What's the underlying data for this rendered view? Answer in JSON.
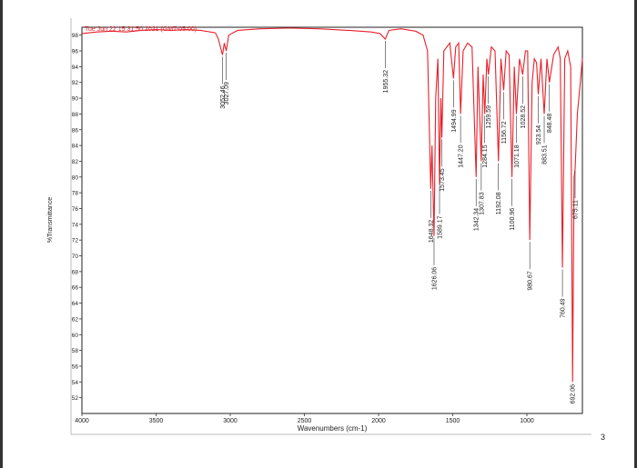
{
  "chart_data": {
    "type": "line",
    "header": "Tue Jun 22 15:31:50 2021 (GMT-05:00)",
    "xlabel": "Wavenumbers (cm-1)",
    "ylabel": "%Transmittance",
    "page_number": "3",
    "color": "#e8202a",
    "xlim": [
      4000,
      626
    ],
    "xticks": [
      4000,
      3500,
      3000,
      2500,
      2000,
      1500,
      1000
    ],
    "ylim": [
      50,
      99
    ],
    "yticks": [
      52,
      54,
      56,
      58,
      60,
      62,
      64,
      66,
      68,
      70,
      72,
      74,
      76,
      78,
      80,
      82,
      84,
      86,
      88,
      90,
      92,
      94,
      96,
      98
    ],
    "x": [
      4000,
      3900,
      3800,
      3700,
      3600,
      3500,
      3400,
      3300,
      3200,
      3100,
      3080,
      3052.46,
      3040,
      3027.09,
      3010,
      2950,
      2800,
      2600,
      2400,
      2200,
      2050,
      1990,
      1955.32,
      1930,
      1850,
      1750,
      1700,
      1670,
      1648.32,
      1640,
      1626.06,
      1615,
      1600,
      1589.17,
      1580,
      1573.45,
      1560,
      1520,
      1494.99,
      1480,
      1460,
      1447.2,
      1430,
      1400,
      1370,
      1342.34,
      1330,
      1307.83,
      1295,
      1284.15,
      1270,
      1259.59,
      1240,
      1215,
      1192.08,
      1175,
      1156.72,
      1140,
      1120,
      1100.96,
      1085,
      1071.18,
      1050,
      1028.52,
      1010,
      995,
      980.67,
      965,
      950,
      935,
      923.54,
      905,
      883.51,
      865,
      848.48,
      820,
      790,
      775,
      760.49,
      745,
      725,
      705,
      692.06,
      682,
      675.11,
      660,
      640,
      626
    ],
    "values": [
      98.2,
      98.4,
      98.5,
      98.4,
      98.6,
      98.7,
      98.6,
      98.7,
      98.6,
      98.3,
      97.5,
      95.5,
      97,
      96,
      98,
      98.6,
      98.8,
      98.9,
      98.8,
      98.6,
      98.4,
      98.2,
      97.5,
      98.6,
      98.8,
      98.5,
      98,
      96,
      78.5,
      84,
      72.5,
      90,
      95,
      79,
      90,
      85,
      96,
      97,
      92.5,
      96.5,
      97,
      88,
      96,
      97,
      96.5,
      80,
      94,
      82,
      93,
      88,
      95,
      93,
      96.5,
      96,
      82,
      95,
      91,
      96,
      95.5,
      80,
      94,
      88,
      95,
      93,
      96,
      96,
      72,
      92,
      95,
      94.5,
      90.5,
      95,
      88,
      95,
      92,
      95.5,
      96.5,
      95,
      68.5,
      95,
      96,
      94,
      54,
      80,
      81,
      88,
      92,
      95
    ],
    "peaks": [
      {
        "value": 3052.46,
        "label": "3052.46"
      },
      {
        "value": 3027.09,
        "label": "3027.09"
      },
      {
        "value": 1955.32,
        "label": "1955.32"
      },
      {
        "value": 1648.32,
        "label": "1648.32"
      },
      {
        "value": 1626.06,
        "label": "1626.06"
      },
      {
        "value": 1589.17,
        "label": "1589.17"
      },
      {
        "value": 1573.45,
        "label": "1573.45"
      },
      {
        "value": 1494.99,
        "label": "1494.99"
      },
      {
        "value": 1447.2,
        "label": "1447.20"
      },
      {
        "value": 1342.34,
        "label": "1342.34"
      },
      {
        "value": 1307.83,
        "label": "1307.83"
      },
      {
        "value": 1284.15,
        "label": "1284.15"
      },
      {
        "value": 1259.59,
        "label": "1259.59"
      },
      {
        "value": 1192.08,
        "label": "1192.08"
      },
      {
        "value": 1156.72,
        "label": "1156.72"
      },
      {
        "value": 1100.96,
        "label": "1100.96"
      },
      {
        "value": 1071.18,
        "label": "1071.18"
      },
      {
        "value": 1028.52,
        "label": "1028.52"
      },
      {
        "value": 980.67,
        "label": "980.67"
      },
      {
        "value": 923.54,
        "label": "923.54"
      },
      {
        "value": 883.51,
        "label": "883.51"
      },
      {
        "value": 848.48,
        "label": "848.48"
      },
      {
        "value": 760.49,
        "label": "760.49"
      },
      {
        "value": 692.06,
        "label": "692.06"
      },
      {
        "value": 675.11,
        "label": "675.11"
      }
    ]
  }
}
